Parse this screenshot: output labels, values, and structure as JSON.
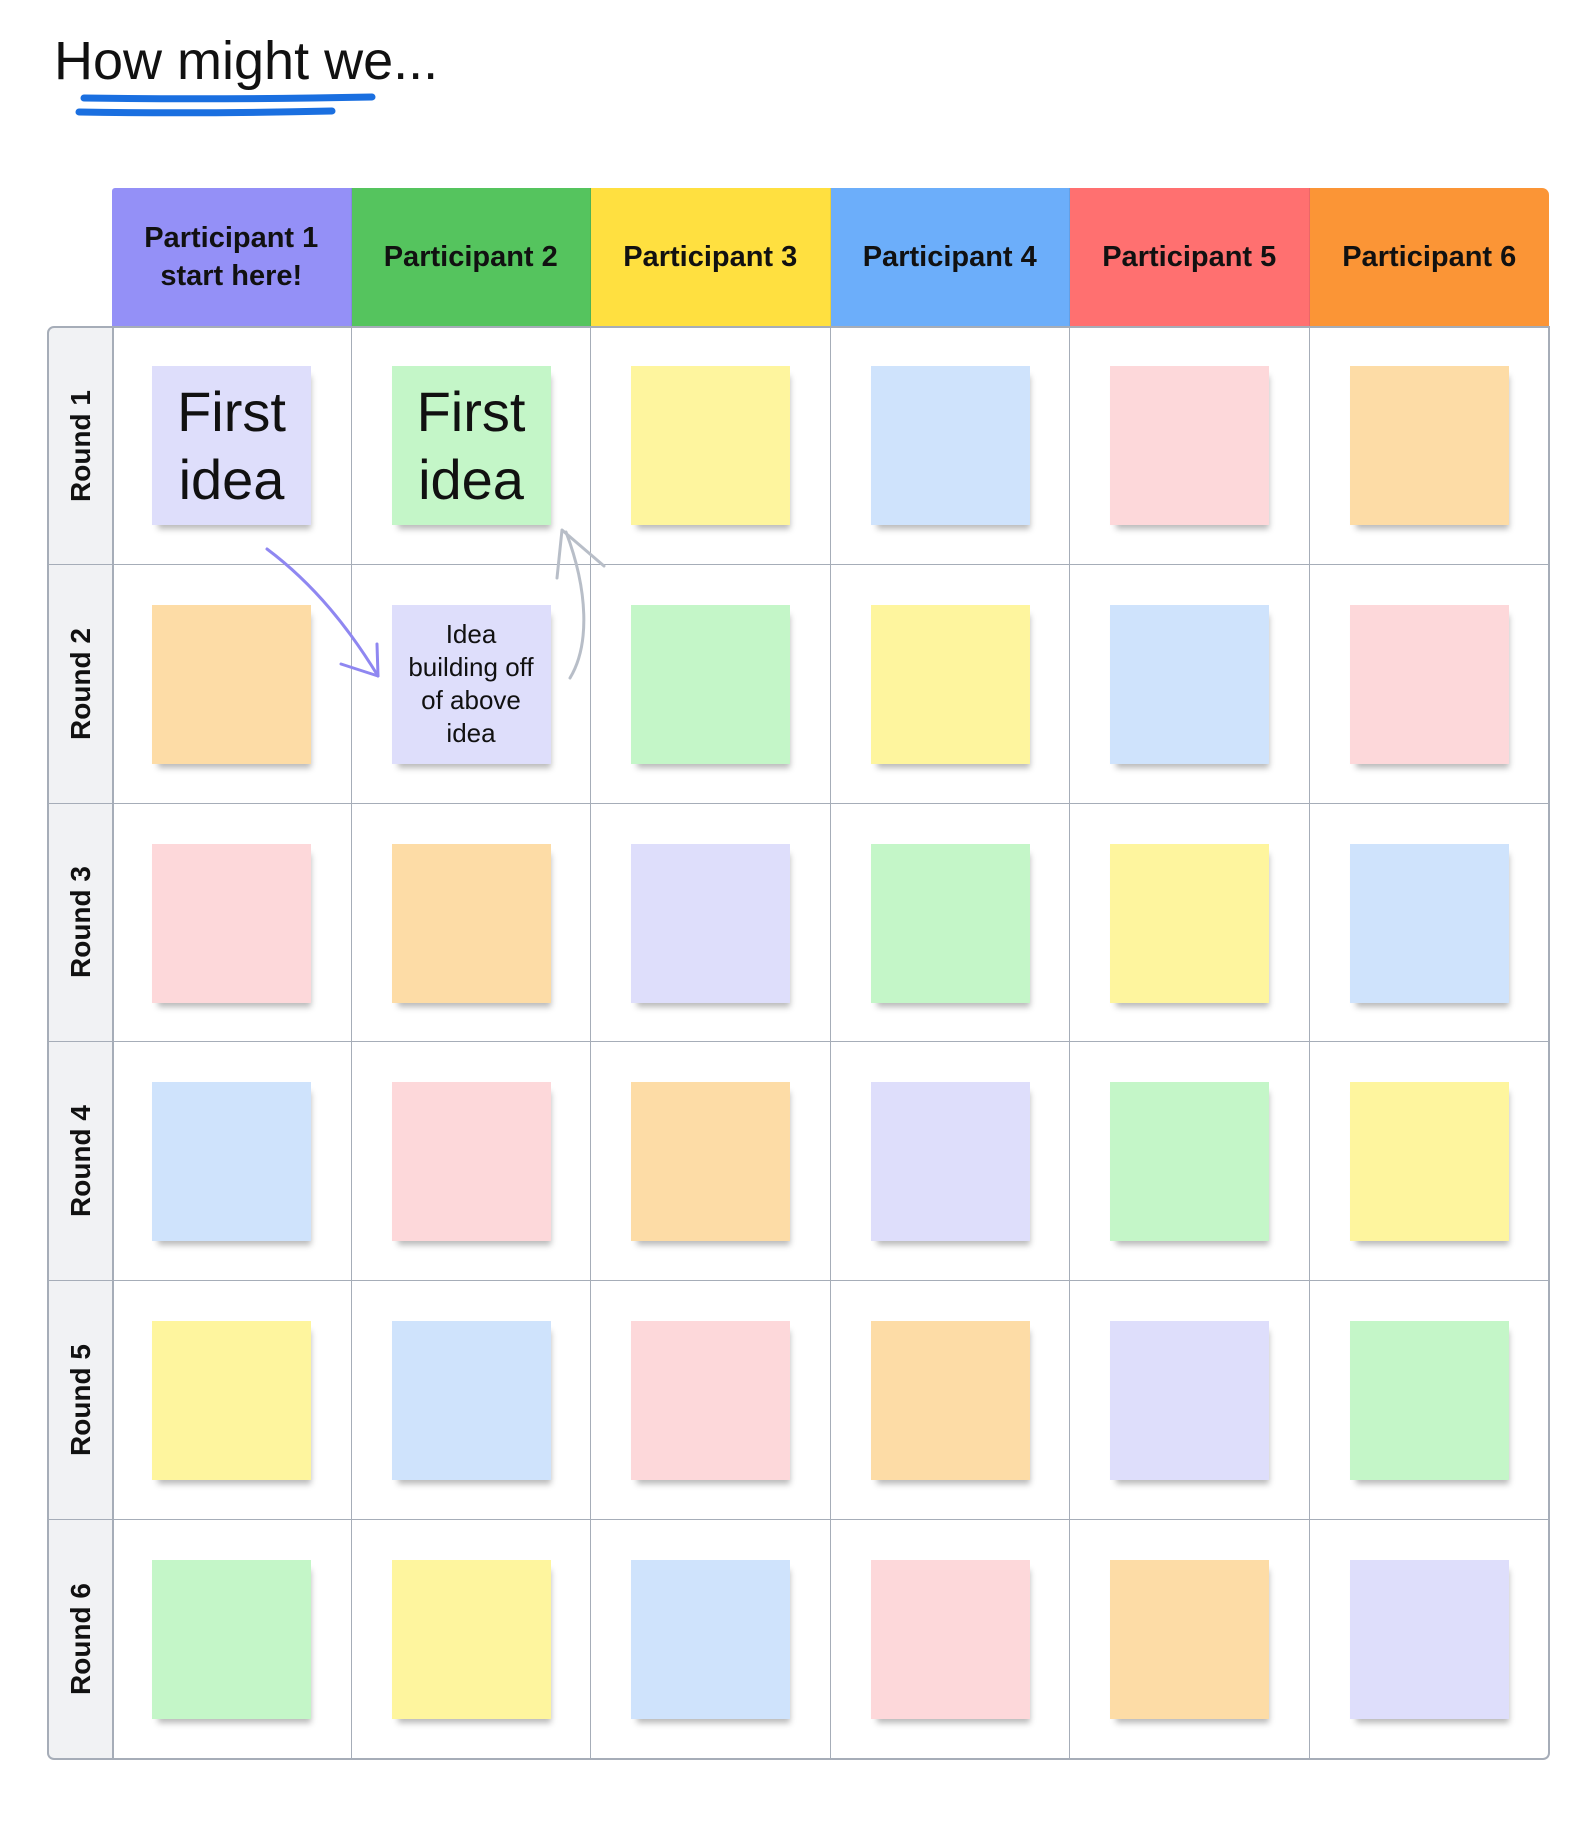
{
  "title": "How might we...",
  "colors": {
    "underline": "#1a6fe0",
    "arrow_purple": "#8f87f1",
    "arrow_gray": "#b8bec8",
    "grid_line": "#a6adb8"
  },
  "participants": [
    {
      "label": "Participant 1\nstart here!",
      "color": "#9490f7"
    },
    {
      "label": "Participant 2",
      "color": "#55c45e"
    },
    {
      "label": "Participant 3",
      "color": "#ffe040"
    },
    {
      "label": "Participant 4",
      "color": "#6caefa"
    },
    {
      "label": "Participant 5",
      "color": "#ff7070"
    },
    {
      "label": "Participant 6",
      "color": "#fb9536"
    }
  ],
  "rounds": [
    "Round 1",
    "Round 2",
    "Round 3",
    "Round 4",
    "Round 5",
    "Round 6"
  ],
  "sticky_palette": {
    "purple": "#dedefb",
    "green": "#c4f6c8",
    "yellow": "#fef59e",
    "blue": "#cfe3fc",
    "pink": "#fdd8da",
    "orange": "#fddca6"
  },
  "stickies": [
    [
      {
        "color": "purple",
        "text": "First idea",
        "size": "big"
      },
      {
        "color": "green",
        "text": "First idea",
        "size": "big"
      },
      {
        "color": "yellow",
        "text": ""
      },
      {
        "color": "blue",
        "text": ""
      },
      {
        "color": "pink",
        "text": ""
      },
      {
        "color": "orange",
        "text": ""
      }
    ],
    [
      {
        "color": "orange",
        "text": ""
      },
      {
        "color": "purple",
        "text": "Idea building off of above idea",
        "size": "small"
      },
      {
        "color": "green",
        "text": ""
      },
      {
        "color": "yellow",
        "text": ""
      },
      {
        "color": "blue",
        "text": ""
      },
      {
        "color": "pink",
        "text": ""
      }
    ],
    [
      {
        "color": "pink",
        "text": ""
      },
      {
        "color": "orange",
        "text": ""
      },
      {
        "color": "purple",
        "text": ""
      },
      {
        "color": "green",
        "text": ""
      },
      {
        "color": "yellow",
        "text": ""
      },
      {
        "color": "blue",
        "text": ""
      }
    ],
    [
      {
        "color": "blue",
        "text": ""
      },
      {
        "color": "pink",
        "text": ""
      },
      {
        "color": "orange",
        "text": ""
      },
      {
        "color": "purple",
        "text": ""
      },
      {
        "color": "green",
        "text": ""
      },
      {
        "color": "yellow",
        "text": ""
      }
    ],
    [
      {
        "color": "yellow",
        "text": ""
      },
      {
        "color": "blue",
        "text": ""
      },
      {
        "color": "pink",
        "text": ""
      },
      {
        "color": "orange",
        "text": ""
      },
      {
        "color": "purple",
        "text": ""
      },
      {
        "color": "green",
        "text": ""
      }
    ],
    [
      {
        "color": "green",
        "text": ""
      },
      {
        "color": "yellow",
        "text": ""
      },
      {
        "color": "blue",
        "text": ""
      },
      {
        "color": "pink",
        "text": ""
      },
      {
        "color": "orange",
        "text": ""
      },
      {
        "color": "purple",
        "text": ""
      }
    ]
  ]
}
